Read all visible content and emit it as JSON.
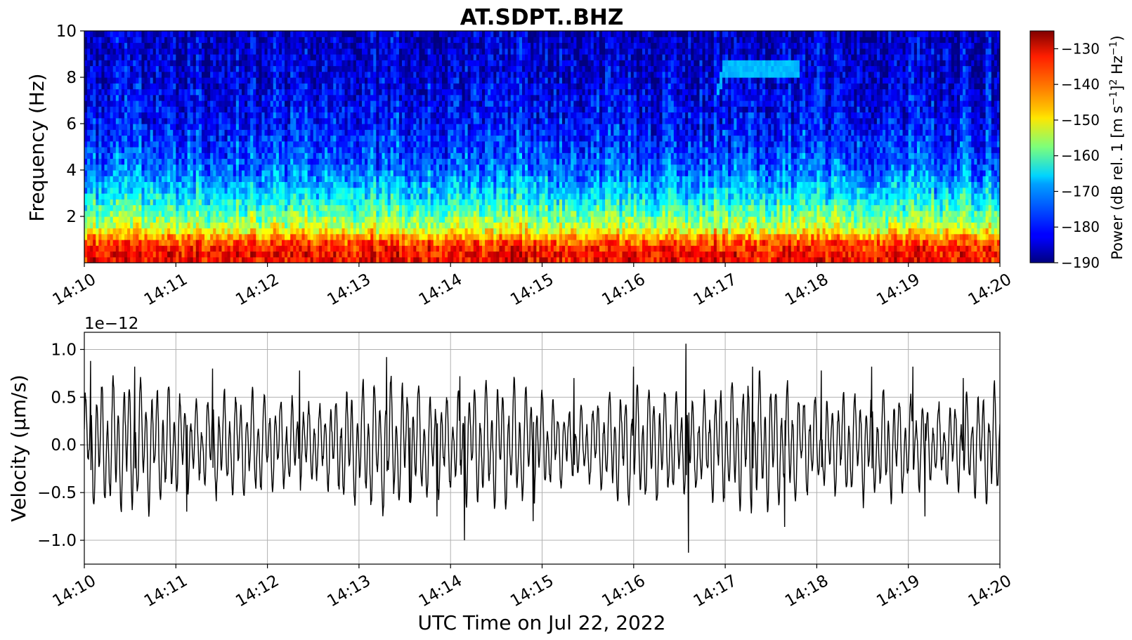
{
  "chart_data": [
    {
      "type": "heatmap",
      "title": "AT.SDPT..BHZ",
      "ylabel": "Frequency (Hz)",
      "ylim": [
        0,
        10
      ],
      "yticks": [
        2,
        4,
        6,
        8,
        10
      ],
      "x_ticks": [
        "14:10",
        "14:11",
        "14:12",
        "14:13",
        "14:14",
        "14:15",
        "14:16",
        "14:17",
        "14:18",
        "14:19",
        "14:20"
      ],
      "xlim": [
        "14:10",
        "14:20"
      ],
      "colormap": "jet",
      "colorbar": {
        "label": "Power (dB rel. 1 [m s⁻¹]² Hz⁻¹)",
        "range": [
          -190,
          -125
        ],
        "ticks": [
          -130,
          -140,
          -150,
          -160,
          -170,
          -180,
          -190
        ]
      },
      "power_profile_db": [
        {
          "freq_hz": 0.5,
          "power_db": -133
        },
        {
          "freq_hz": 1.0,
          "power_db": -140
        },
        {
          "freq_hz": 1.5,
          "power_db": -152
        },
        {
          "freq_hz": 2.0,
          "power_db": -158
        },
        {
          "freq_hz": 2.5,
          "power_db": -163
        },
        {
          "freq_hz": 3.0,
          "power_db": -168
        },
        {
          "freq_hz": 3.5,
          "power_db": -171
        },
        {
          "freq_hz": 4.0,
          "power_db": -175
        },
        {
          "freq_hz": 5.0,
          "power_db": -178
        },
        {
          "freq_hz": 6.0,
          "power_db": -181
        },
        {
          "freq_hz": 8.0,
          "power_db": -184
        },
        {
          "freq_hz": 10.0,
          "power_db": -186
        }
      ],
      "feature": {
        "time_start": "14:16.9",
        "time_end": "14:17.8",
        "freq_hz_start": 7.2,
        "freq_hz_end": 8.7,
        "power_db": -170
      }
    },
    {
      "type": "line",
      "ylabel": "Velocity (μm/s)",
      "xlabel": "UTC Time on Jul 22, 2022",
      "offset_text": "1e−12",
      "ylim": [
        -1.25,
        1.18
      ],
      "y_ticks": [
        "1.0",
        "0.5",
        "0.0",
        "−0.5",
        "−1.0"
      ],
      "y_tick_values": [
        1.0,
        0.5,
        0.0,
        -0.5,
        -1.0
      ],
      "x_ticks": [
        "14:10",
        "14:11",
        "14:12",
        "14:13",
        "14:14",
        "14:15",
        "14:16",
        "14:17",
        "14:18",
        "14:19",
        "14:20"
      ],
      "xlim": [
        "14:10",
        "14:20"
      ],
      "grid": true,
      "line_color": "#000000",
      "peaks": [
        {
          "t_min": 0.07,
          "v": 0.88
        },
        {
          "t_min": 0.55,
          "v": 0.82
        },
        {
          "t_min": 1.12,
          "v": -0.7
        },
        {
          "t_min": 1.4,
          "v": 0.8
        },
        {
          "t_min": 2.35,
          "v": 0.78
        },
        {
          "t_min": 3.3,
          "v": 0.92
        },
        {
          "t_min": 3.55,
          "v": -0.6
        },
        {
          "t_min": 3.85,
          "v": -0.75
        },
        {
          "t_min": 4.1,
          "v": 0.72
        },
        {
          "t_min": 4.15,
          "v": -1.0
        },
        {
          "t_min": 4.9,
          "v": -0.8
        },
        {
          "t_min": 5.35,
          "v": 0.7
        },
        {
          "t_min": 6.0,
          "v": 0.82
        },
        {
          "t_min": 6.57,
          "v": 1.06
        },
        {
          "t_min": 6.6,
          "v": -1.13
        },
        {
          "t_min": 7.3,
          "v": 0.82
        },
        {
          "t_min": 7.65,
          "v": -0.86
        },
        {
          "t_min": 8.05,
          "v": 0.78
        },
        {
          "t_min": 8.6,
          "v": 0.82
        },
        {
          "t_min": 9.05,
          "v": 0.82
        },
        {
          "t_min": 9.18,
          "v": -0.75
        },
        {
          "t_min": 9.6,
          "v": 0.7
        }
      ]
    }
  ]
}
